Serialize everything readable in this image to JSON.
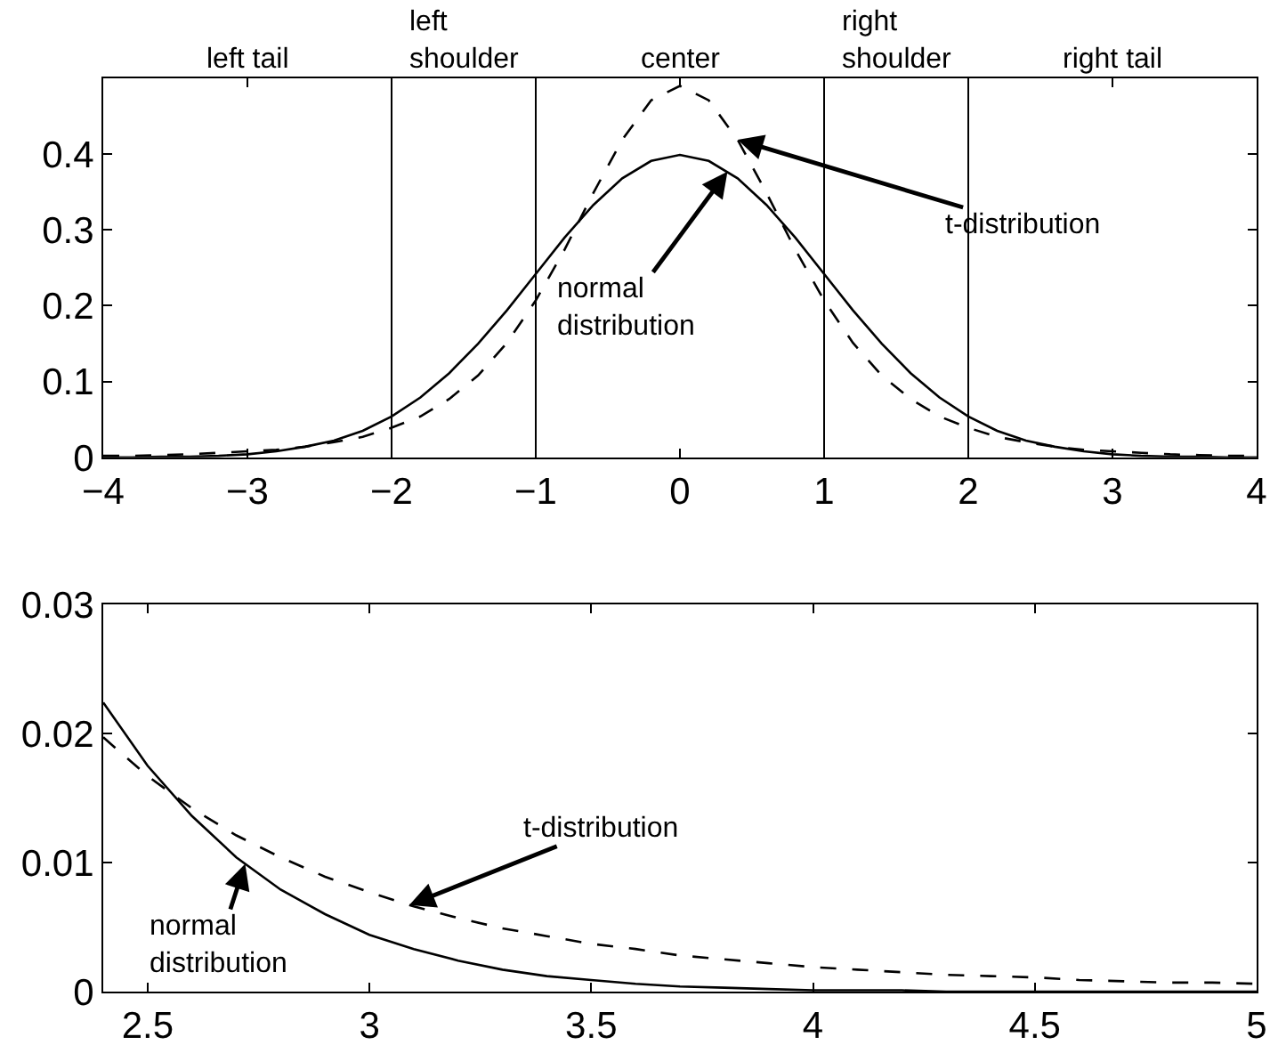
{
  "chart_data": [
    {
      "type": "line",
      "x": [
        -4,
        -3.8,
        -3.6,
        -3.4,
        -3.2,
        -3,
        -2.8,
        -2.6,
        -2.4,
        -2.2,
        -2,
        -1.8,
        -1.6,
        -1.4,
        -1.2,
        -1,
        -0.8,
        -0.6,
        -0.4,
        -0.2,
        0,
        0.2,
        0.4,
        0.6,
        0.8,
        1,
        1.2,
        1.4,
        1.6,
        1.8,
        2,
        2.2,
        2.4,
        2.6,
        2.8,
        3,
        3.2,
        3.4,
        3.6,
        3.8,
        4
      ],
      "series": [
        {
          "color": "#000000",
          "line_style": "solid",
          "values": [
            0.0,
            0.0,
            0.001,
            0.001,
            0.002,
            0.004,
            0.008,
            0.014,
            0.022,
            0.035,
            0.054,
            0.079,
            0.111,
            0.15,
            0.194,
            0.242,
            0.29,
            0.333,
            0.368,
            0.391,
            0.399,
            0.391,
            0.368,
            0.333,
            0.29,
            0.242,
            0.194,
            0.15,
            0.111,
            0.079,
            0.054,
            0.035,
            0.022,
            0.014,
            0.008,
            0.004,
            0.002,
            0.001,
            0.001,
            0.0,
            0.0
          ]
        },
        {
          "color": "#000000",
          "line_style": "dashed",
          "values": [
            0.002,
            0.002,
            0.003,
            0.004,
            0.006,
            0.008,
            0.01,
            0.014,
            0.02,
            0.027,
            0.039,
            0.054,
            0.077,
            0.108,
            0.151,
            0.207,
            0.274,
            0.349,
            0.419,
            0.471,
            0.49,
            0.471,
            0.419,
            0.349,
            0.274,
            0.207,
            0.151,
            0.108,
            0.077,
            0.054,
            0.039,
            0.027,
            0.02,
            0.014,
            0.01,
            0.008,
            0.006,
            0.004,
            0.003,
            0.002,
            0.002
          ]
        }
      ],
      "xlim": [
        -4,
        4
      ],
      "ylim": [
        0,
        0.5
      ],
      "xticks": [
        -4,
        -3,
        -2,
        -1,
        0,
        1,
        2,
        3,
        4
      ],
      "yticks": [
        0,
        0.1,
        0.2,
        0.3,
        0.4
      ],
      "ref_lines": [
        {
          "axis": "x",
          "value": -2,
          "color": "#000000"
        },
        {
          "axis": "x",
          "value": -1,
          "color": "#000000"
        },
        {
          "axis": "x",
          "value": 1,
          "color": "#000000"
        },
        {
          "axis": "x",
          "value": 2,
          "color": "#000000"
        }
      ],
      "annotations": [
        "left tail",
        "left\nshoulder",
        "center",
        "right\nshoulder",
        "right tail",
        {
          "text": "normal\ndistribution",
          "x": 0.33,
          "y": 0.377
        },
        {
          "text": "t-distribution",
          "x": 0.4,
          "y": 0.419
        }
      ],
      "grid": false
    },
    {
      "type": "line",
      "x": [
        2.4,
        2.5,
        2.6,
        2.7,
        2.8,
        2.9,
        3,
        3.1,
        3.2,
        3.3,
        3.4,
        3.5,
        3.6,
        3.7,
        3.8,
        3.9,
        4,
        4.1,
        4.2,
        4.3,
        4.4,
        4.5,
        4.6,
        4.7,
        4.8,
        4.9,
        5
      ],
      "series": [
        {
          "color": "#000000",
          "line_style": "solid",
          "values": [
            0.0224,
            0.0175,
            0.0136,
            0.0104,
            0.0079,
            0.006,
            0.0044,
            0.0033,
            0.0024,
            0.0017,
            0.0012,
            0.0009,
            0.0006,
            0.0004,
            0.0003,
            0.0002,
            0.0001,
            0.0001,
            0.0001,
            0,
            0,
            0,
            0,
            0,
            0,
            0,
            0
          ]
        },
        {
          "color": "#000000",
          "line_style": "dashed",
          "values": [
            0.0197,
            0.0167,
            0.0142,
            0.0121,
            0.0104,
            0.0089,
            0.0077,
            0.0066,
            0.0057,
            0.0049,
            0.0043,
            0.0037,
            0.0033,
            0.0028,
            0.0025,
            0.0022,
            0.0019,
            0.0017,
            0.0015,
            0.0013,
            0.0012,
            0.0011,
            0.0009,
            0.0008,
            0.0007,
            0.0007,
            0.0006
          ]
        }
      ],
      "xlim": [
        2.4,
        5
      ],
      "ylim": [
        0,
        0.03
      ],
      "xticks": [
        2.5,
        3,
        3.5,
        4,
        4.5,
        5
      ],
      "yticks": [
        0,
        0.01,
        0.02,
        0.03
      ],
      "annotations": [
        {
          "text": "normal\ndistribution",
          "x": 2.72,
          "y": 0.0099
        },
        {
          "text": "t-distribution",
          "x": 3.09,
          "y": 0.0067
        }
      ],
      "grid": false
    }
  ]
}
